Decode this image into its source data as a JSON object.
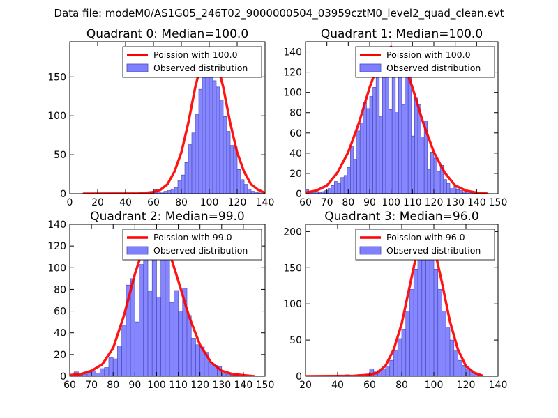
{
  "figure": {
    "suptitle": "Data file: modeM0/AS1G05_246T02_9000000504_03959cztM0_level2_quad_clean.evt"
  },
  "colors": {
    "bar_fill": "#8080ff",
    "bar_stroke": "#4b4bbf",
    "poisson_line": "#ff0000"
  },
  "chart_data": [
    {
      "type": "bar",
      "title": "Quadrant 0: Median=100.0",
      "xlim": [
        0,
        140
      ],
      "ylim": [
        0,
        195
      ],
      "xticks": [
        "0",
        "20",
        "40",
        "60",
        "80",
        "100",
        "120",
        "140"
      ],
      "yticks": [
        "0",
        "50",
        "100",
        "150"
      ],
      "legend": {
        "line_label": "Poission with 100.0",
        "bar_label": "Observed distribution",
        "placement": "top-right"
      },
      "bin_width": 2.5,
      "bins": [
        [
          57.5,
          2
        ],
        [
          60,
          5
        ],
        [
          62.5,
          2
        ],
        [
          65,
          1
        ],
        [
          67.5,
          3
        ],
        [
          70,
          4
        ],
        [
          72.5,
          6
        ],
        [
          75,
          8
        ],
        [
          77.5,
          17
        ],
        [
          80,
          24
        ],
        [
          82.5,
          40
        ],
        [
          85,
          63
        ],
        [
          87.5,
          78
        ],
        [
          90,
          102
        ],
        [
          92.5,
          134
        ],
        [
          95,
          150
        ],
        [
          97.5,
          176
        ],
        [
          100,
          160
        ],
        [
          102.5,
          145
        ],
        [
          105,
          137
        ],
        [
          107.5,
          120
        ],
        [
          110,
          99
        ],
        [
          112.5,
          80
        ],
        [
          115,
          62
        ],
        [
          117.5,
          60
        ],
        [
          120,
          31
        ],
        [
          122.5,
          18
        ],
        [
          125,
          12
        ],
        [
          127.5,
          6
        ],
        [
          130,
          3
        ],
        [
          132.5,
          2
        ],
        [
          135,
          1
        ]
      ],
      "poisson": {
        "x": [
          10,
          50,
          60,
          65,
          70,
          75,
          80,
          85,
          90,
          95,
          100,
          105,
          110,
          115,
          120,
          125,
          130,
          135,
          140
        ],
        "y": [
          0,
          0.2,
          2,
          5,
          12,
          28,
          53,
          91,
          137,
          172,
          188,
          172,
          137,
          91,
          53,
          28,
          12,
          5,
          1
        ]
      }
    },
    {
      "type": "bar",
      "title": "Quadrant 1: Median=100.0",
      "xlim": [
        60,
        150
      ],
      "ylim": [
        0,
        150
      ],
      "xticks": [
        "60",
        "70",
        "80",
        "90",
        "100",
        "110",
        "120",
        "130",
        "140",
        "150"
      ],
      "yticks": [
        "0",
        "20",
        "40",
        "60",
        "80",
        "100",
        "120",
        "140"
      ],
      "legend": {
        "line_label": "Poission with 100.0",
        "bar_label": "Observed distribution",
        "placement": "top-right"
      },
      "bin_width": 1.5,
      "bins": [
        [
          60,
          4
        ],
        [
          61.5,
          2
        ],
        [
          63,
          1
        ],
        [
          64.5,
          2
        ],
        [
          66,
          1
        ],
        [
          67.5,
          2
        ],
        [
          69,
          3
        ],
        [
          70.5,
          5
        ],
        [
          72,
          8
        ],
        [
          73.5,
          12
        ],
        [
          75,
          10
        ],
        [
          76.5,
          16
        ],
        [
          78,
          18
        ],
        [
          79.5,
          26
        ],
        [
          81,
          47
        ],
        [
          82.5,
          34
        ],
        [
          84,
          62
        ],
        [
          85.5,
          70
        ],
        [
          87,
          90
        ],
        [
          88.5,
          84
        ],
        [
          90,
          96
        ],
        [
          91.5,
          105
        ],
        [
          93,
          126
        ],
        [
          94.5,
          76
        ],
        [
          96,
          138
        ],
        [
          97.5,
          118
        ],
        [
          99,
          83
        ],
        [
          100.5,
          130
        ],
        [
          102,
          80
        ],
        [
          103.5,
          144
        ],
        [
          105,
          88
        ],
        [
          106.5,
          136
        ],
        [
          108,
          115
        ],
        [
          109.5,
          57
        ],
        [
          111,
          95
        ],
        [
          112.5,
          88
        ],
        [
          114,
          56
        ],
        [
          115.5,
          72
        ],
        [
          117,
          24
        ],
        [
          118.5,
          41
        ],
        [
          120,
          35
        ],
        [
          121.5,
          22
        ],
        [
          123,
          28
        ],
        [
          124.5,
          14
        ],
        [
          126,
          10
        ],
        [
          127.5,
          5
        ],
        [
          129,
          7
        ],
        [
          130.5,
          4
        ],
        [
          132,
          3
        ],
        [
          133.5,
          2
        ],
        [
          135,
          2
        ],
        [
          136.5,
          1
        ]
      ],
      "poisson": {
        "x": [
          60,
          65,
          70,
          75,
          80,
          85,
          90,
          95,
          100,
          105,
          110,
          115,
          120,
          125,
          130,
          135,
          140,
          145
        ],
        "y": [
          1,
          3,
          8,
          21,
          41,
          70,
          105,
          134,
          145,
          134,
          105,
          70,
          41,
          21,
          8,
          3,
          1,
          0
        ]
      }
    },
    {
      "type": "bar",
      "title": "Quadrant 2: Median=99.0",
      "xlim": [
        60,
        150
      ],
      "ylim": [
        0,
        140
      ],
      "xticks": [
        "60",
        "70",
        "80",
        "90",
        "100",
        "110",
        "120",
        "130",
        "140",
        "150"
      ],
      "yticks": [
        "0",
        "20",
        "40",
        "60",
        "80",
        "100",
        "120",
        "140"
      ],
      "legend": {
        "line_label": "Poission with 99.0",
        "bar_label": "Observed distribution",
        "placement": "top-right"
      },
      "bin_width": 2,
      "bins": [
        [
          62,
          4
        ],
        [
          64,
          1
        ],
        [
          66,
          2
        ],
        [
          68,
          4
        ],
        [
          70,
          5
        ],
        [
          72,
          3
        ],
        [
          74,
          7
        ],
        [
          76,
          8
        ],
        [
          78,
          17
        ],
        [
          80,
          16
        ],
        [
          82,
          28
        ],
        [
          84,
          47
        ],
        [
          86,
          84
        ],
        [
          88,
          90
        ],
        [
          90,
          50
        ],
        [
          92,
          103
        ],
        [
          94,
          118
        ],
        [
          96,
          78
        ],
        [
          98,
          128
        ],
        [
          100,
          73
        ],
        [
          102,
          134
        ],
        [
          104,
          120
        ],
        [
          106,
          68
        ],
        [
          108,
          79
        ],
        [
          110,
          60
        ],
        [
          112,
          81
        ],
        [
          114,
          56
        ],
        [
          116,
          35
        ],
        [
          118,
          29
        ],
        [
          120,
          27
        ],
        [
          122,
          22
        ],
        [
          124,
          13
        ],
        [
          126,
          10
        ],
        [
          128,
          9
        ],
        [
          130,
          3
        ],
        [
          132,
          2
        ],
        [
          134,
          1
        ],
        [
          136,
          2
        ]
      ],
      "poisson": {
        "x": [
          60,
          65,
          70,
          75,
          80,
          85,
          90,
          95,
          100,
          105,
          110,
          115,
          120,
          125,
          130,
          135,
          140,
          145
        ],
        "y": [
          1,
          2,
          5,
          11,
          26,
          56,
          94,
          125,
          135,
          120,
          88,
          55,
          29,
          13,
          5,
          2,
          1,
          0
        ]
      }
    },
    {
      "type": "bar",
      "title": "Quadrant 3: Median=96.0",
      "xlim": [
        20,
        140
      ],
      "ylim": [
        0,
        210
      ],
      "xticks": [
        "20",
        "40",
        "60",
        "80",
        "100",
        "120",
        "140"
      ],
      "yticks": [
        "0",
        "50",
        "100",
        "150",
        "200"
      ],
      "legend": {
        "line_label": "Poission with 96.0",
        "bar_label": "Observed distribution",
        "placement": "top-right"
      },
      "bin_width": 2.5,
      "bins": [
        [
          40,
          1
        ],
        [
          45,
          2
        ],
        [
          52.5,
          2
        ],
        [
          57.5,
          3
        ],
        [
          60,
          10
        ],
        [
          62.5,
          6
        ],
        [
          65,
          8
        ],
        [
          67.5,
          9
        ],
        [
          70,
          14
        ],
        [
          72.5,
          22
        ],
        [
          75,
          35
        ],
        [
          77.5,
          52
        ],
        [
          80,
          65
        ],
        [
          82.5,
          90
        ],
        [
          85,
          120
        ],
        [
          87.5,
          148
        ],
        [
          90,
          165
        ],
        [
          92.5,
          175
        ],
        [
          95,
          190
        ],
        [
          97.5,
          162
        ],
        [
          100,
          148
        ],
        [
          102.5,
          120
        ],
        [
          105,
          90
        ],
        [
          107.5,
          68
        ],
        [
          110,
          50
        ],
        [
          112.5,
          35
        ],
        [
          115,
          22
        ],
        [
          117.5,
          15
        ],
        [
          120,
          10
        ],
        [
          122.5,
          6
        ],
        [
          125,
          3
        ],
        [
          127.5,
          2
        ]
      ],
      "poisson": {
        "x": [
          20,
          50,
          60,
          65,
          70,
          75,
          80,
          85,
          90,
          95,
          100,
          105,
          110,
          115,
          120,
          125,
          130
        ],
        "y": [
          0,
          0.5,
          2,
          5,
          15,
          37,
          73,
          125,
          177,
          200,
          180,
          130,
          76,
          37,
          14,
          5,
          1
        ]
      }
    }
  ]
}
